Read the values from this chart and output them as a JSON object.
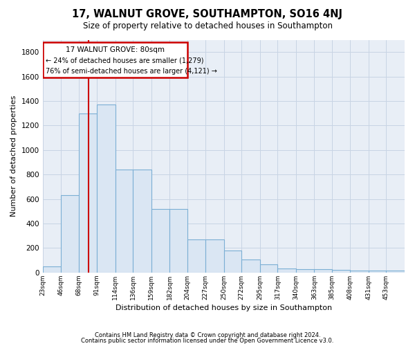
{
  "title": "17, WALNUT GROVE, SOUTHAMPTON, SO16 4NJ",
  "subtitle": "Size of property relative to detached houses in Southampton",
  "xlabel": "Distribution of detached houses by size in Southampton",
  "ylabel": "Number of detached properties",
  "bar_color": "#dae6f3",
  "bar_edge_color": "#7bafd4",
  "grid_color": "#c8d4e4",
  "background_color": "#e8eef6",
  "vline_color": "#cc0000",
  "annotation_box_color": "#cc0000",
  "footer1": "Contains HM Land Registry data © Crown copyright and database right 2024.",
  "footer2": "Contains public sector information licensed under the Open Government Licence v3.0.",
  "annotation_title": "17 WALNUT GROVE: 80sqm",
  "annotation_line1": "← 24% of detached houses are smaller (1,279)",
  "annotation_line2": "76% of semi-detached houses are larger (4,121) →",
  "property_size_sqm": 80,
  "bin_edges": [
    23,
    46,
    68,
    91,
    114,
    136,
    159,
    182,
    204,
    227,
    250,
    272,
    295,
    317,
    340,
    363,
    385,
    408,
    431,
    453,
    476
  ],
  "bar_heights": [
    50,
    630,
    1300,
    1370,
    840,
    840,
    520,
    520,
    270,
    270,
    180,
    105,
    65,
    35,
    30,
    25,
    20,
    15,
    15,
    15
  ],
  "ylim": [
    0,
    1900
  ],
  "yticks": [
    0,
    200,
    400,
    600,
    800,
    1000,
    1200,
    1400,
    1600,
    1800
  ],
  "figsize": [
    6.0,
    5.0
  ],
  "dpi": 100
}
